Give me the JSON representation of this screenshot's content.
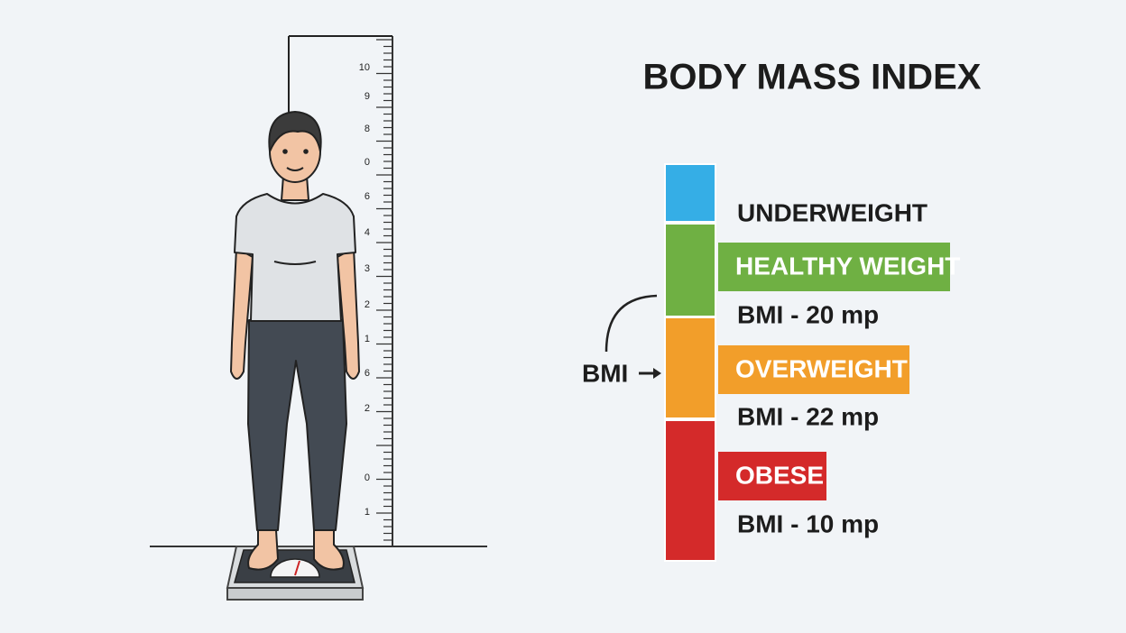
{
  "title": "BODY MASS INDEX",
  "pointer_label": "BMI",
  "ruler": {
    "labels": [
      "10",
      "9",
      "8",
      "0",
      "6",
      "4",
      "3",
      "2",
      "1",
      "6",
      "2",
      "0",
      "1"
    ]
  },
  "categories": [
    {
      "name": "UNDERWEIGHT"
    },
    {
      "name": "HEALTHY WEIGHT",
      "detail": "BMI - 20 mp"
    },
    {
      "name": "OVERWEIGHT",
      "detail": "BMI - 22 mp"
    },
    {
      "name": "OBESE",
      "detail": "BMI - 10 mp"
    }
  ]
}
